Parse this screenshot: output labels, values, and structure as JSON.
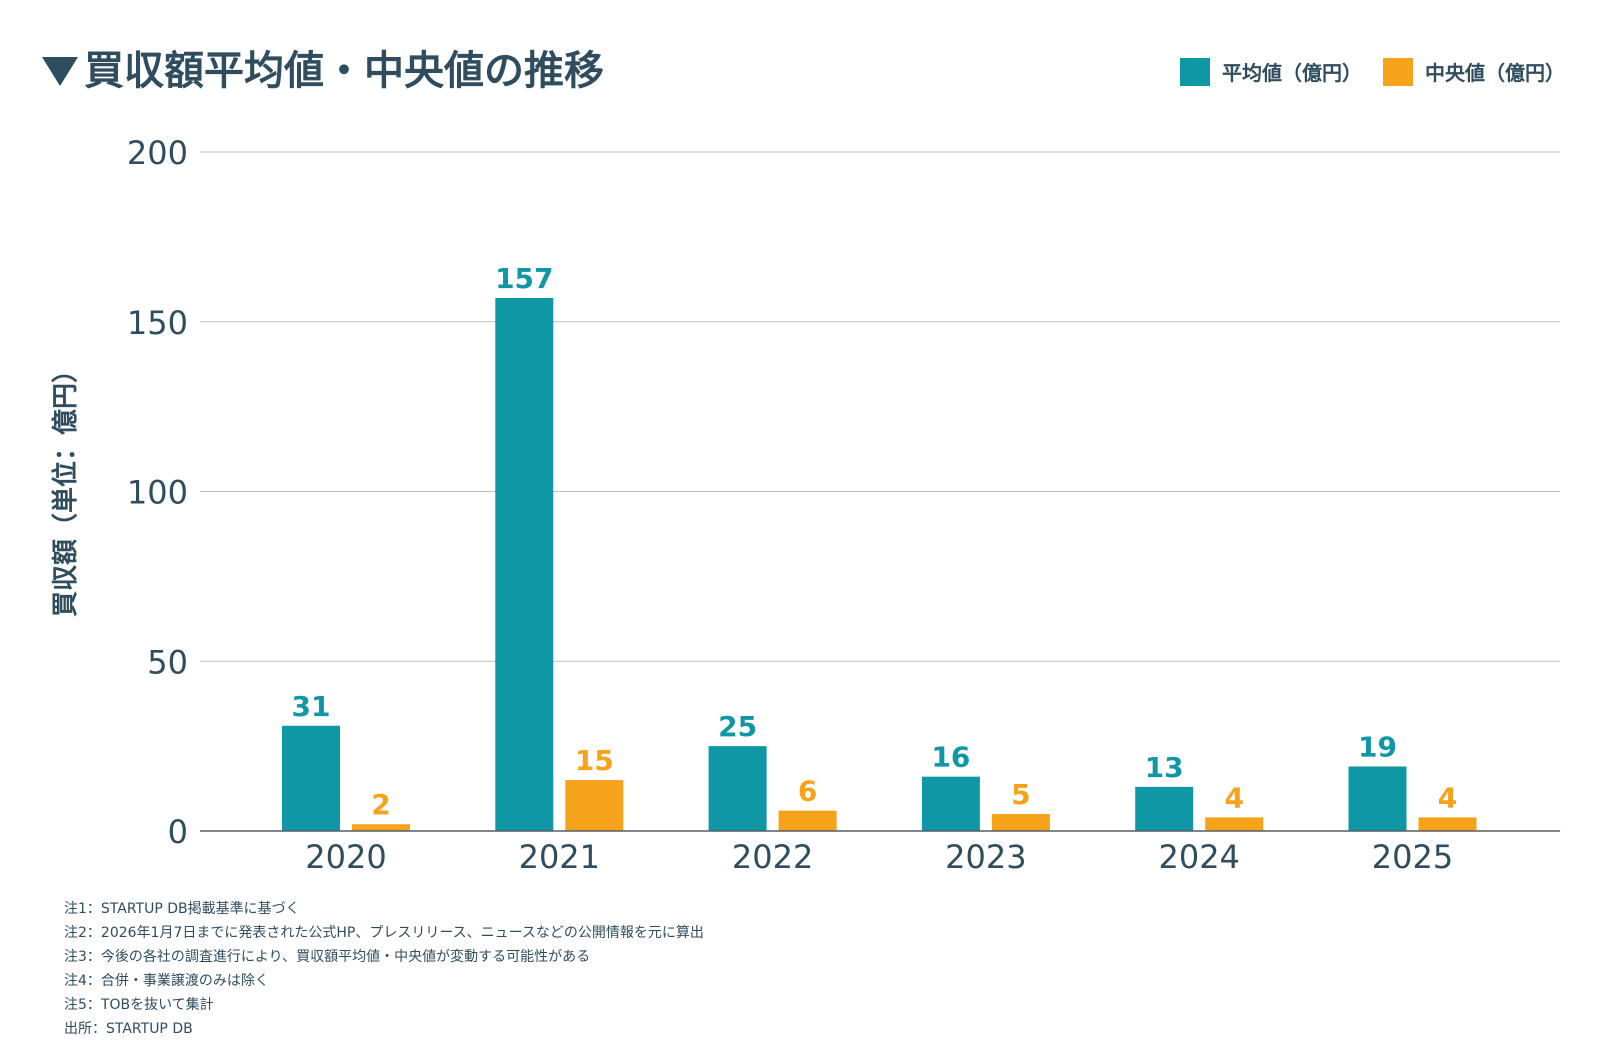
{
  "chart_data": {
    "type": "bar",
    "title": "買収額平均値・中央値の推移",
    "ylabel": "買収額（単位：億円）",
    "xlabel": "",
    "ylim": [
      0,
      200
    ],
    "yticks": [
      0,
      50,
      100,
      150,
      200
    ],
    "grid": true,
    "legend_position": "top-right",
    "categories": [
      "2020",
      "2021",
      "2022",
      "2023",
      "2024",
      "2025"
    ],
    "series": [
      {
        "name": "平均値（億円）",
        "color": "#0f97a6",
        "values": [
          31,
          157,
          25,
          16,
          13,
          19
        ]
      },
      {
        "name": "中央値（億円）",
        "color": "#f7a21b",
        "values": [
          2,
          15,
          6,
          5,
          4,
          4
        ]
      }
    ]
  },
  "notes": [
    "注1：STARTUP DB掲載基準に基づく",
    "注2：2026年1月7日までに発表された公式HP、プレスリリース、ニュースなどの公開情報を元に算出",
    "注3：今後の各社の調査進行により、買収額平均値・中央値が変動する可能性がある",
    "注4：合併・事業譲渡のみは除く",
    "注5：TOBを抜いて集計",
    "出所：STARTUP DB"
  ],
  "colors": {
    "text": "#2f4d5f",
    "grid": "#b9c0c4"
  }
}
